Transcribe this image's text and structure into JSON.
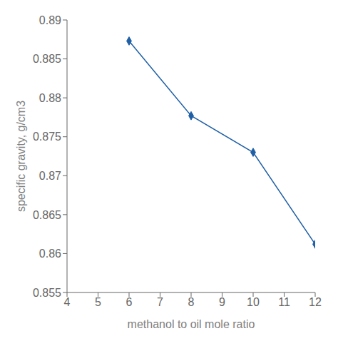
{
  "chart_data": {
    "type": "line",
    "x": [
      6,
      8,
      10,
      12
    ],
    "values": [
      0.8873,
      0.8777,
      0.873,
      0.8612
    ],
    "color": "#1F5FA6",
    "marker": "diamond",
    "xlabel": "methanol to oil mole ratio",
    "ylabel": "specific gravity, g/cm3",
    "xlim": [
      4,
      12
    ],
    "ylim": [
      0.855,
      0.89
    ],
    "xticks": [
      4,
      5,
      6,
      7,
      8,
      9,
      10,
      11,
      12
    ],
    "yticks": [
      0.855,
      0.86,
      0.865,
      0.87,
      0.875,
      0.88,
      0.885,
      0.89
    ]
  }
}
